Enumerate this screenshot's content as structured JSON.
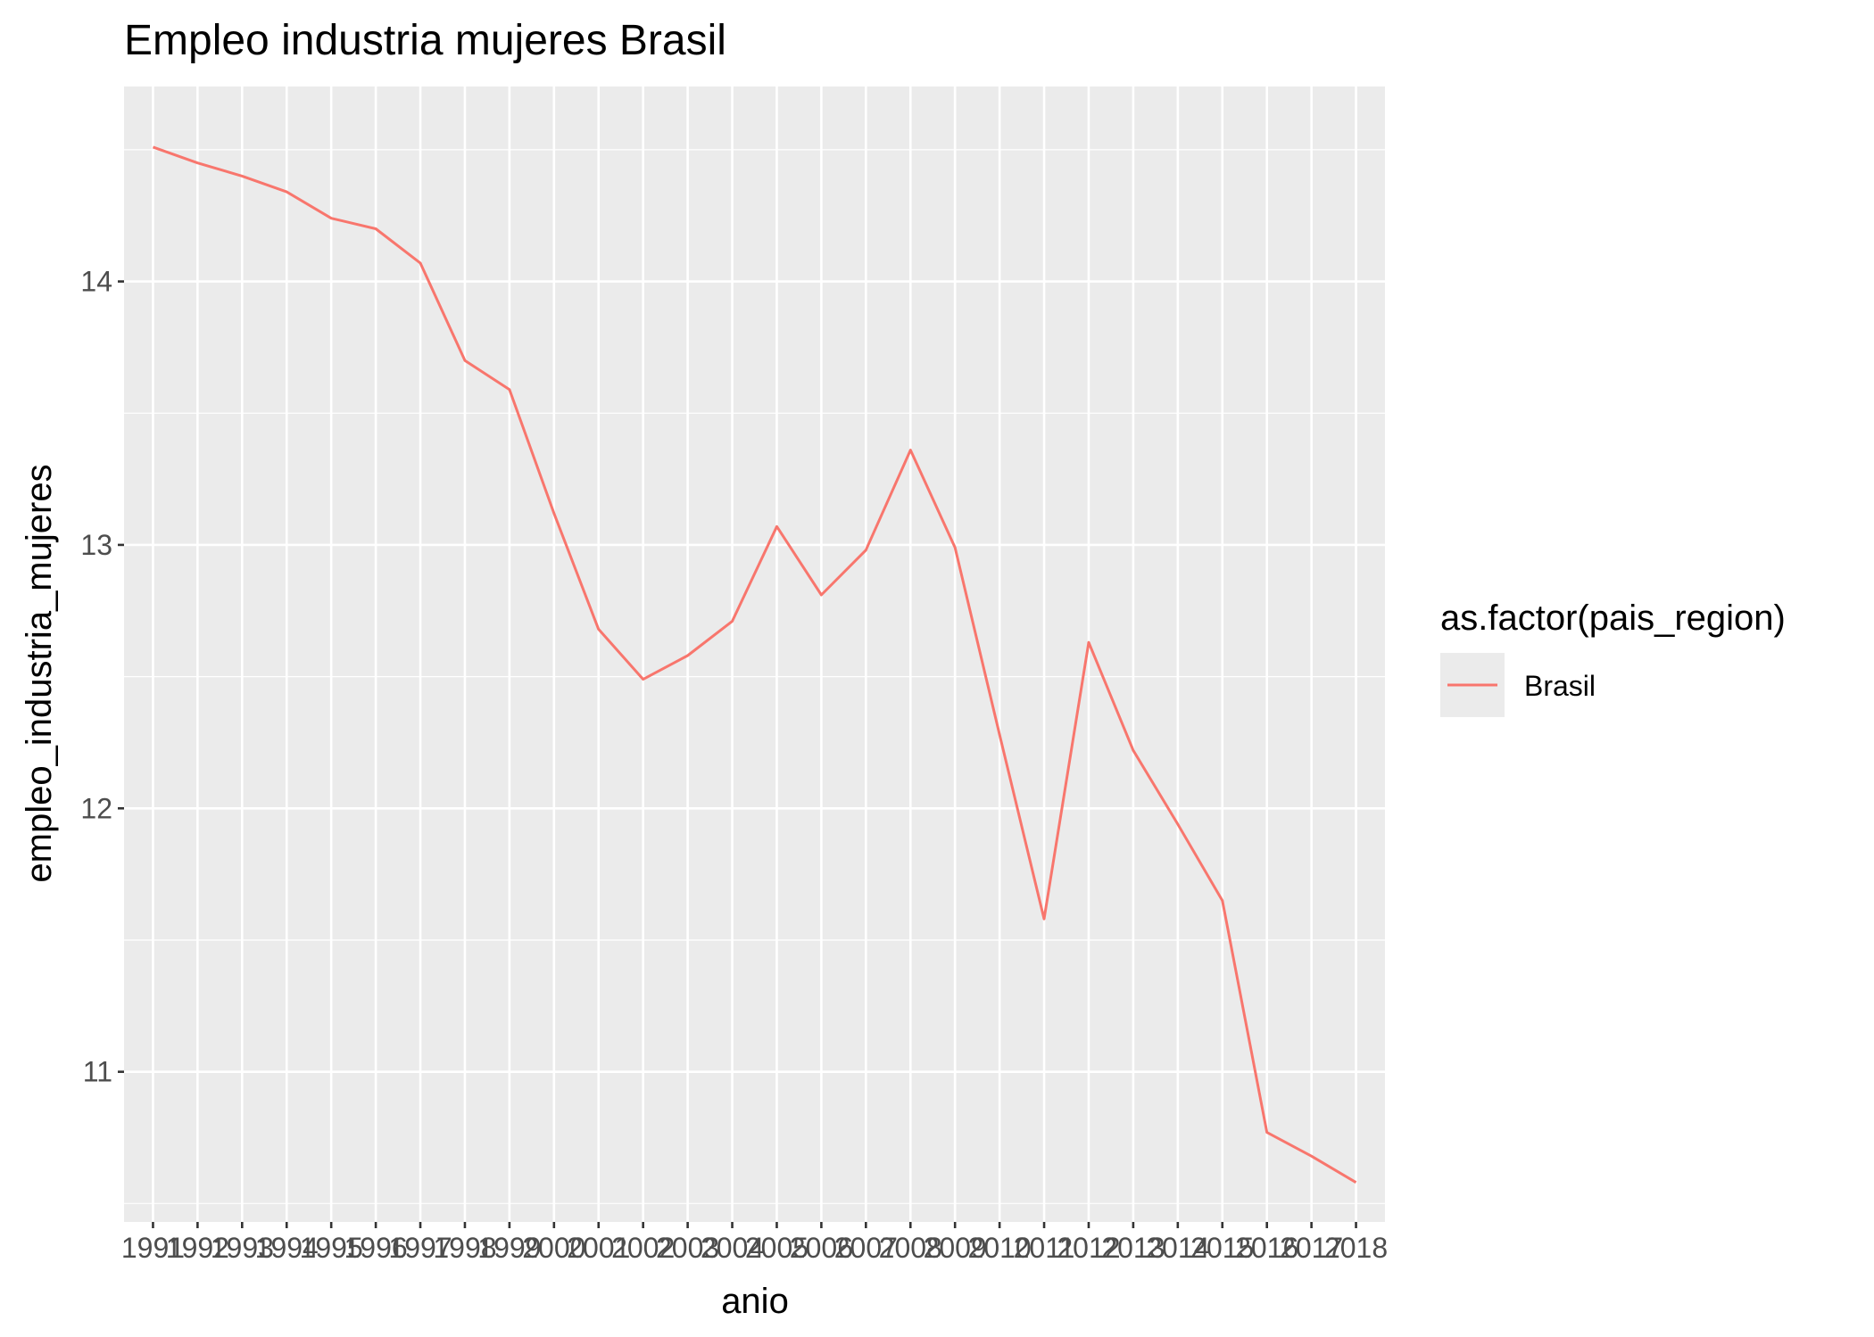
{
  "chart_data": {
    "type": "line",
    "title": "Empleo industria mujeres Brasil",
    "xlabel": "anio",
    "ylabel": "empleo_industria_mujeres",
    "x": [
      1991,
      1992,
      1993,
      1994,
      1995,
      1996,
      1997,
      1998,
      1999,
      2000,
      2001,
      2002,
      2003,
      2004,
      2005,
      2006,
      2007,
      2008,
      2009,
      2010,
      2011,
      2012,
      2013,
      2014,
      2015,
      2016,
      2017,
      2018
    ],
    "x_tick_labels": [
      "1991",
      "1992",
      "1993",
      "1994",
      "1995",
      "1996",
      "1997",
      "1998",
      "1999",
      "2000",
      "2001",
      "2002",
      "2003",
      "2004",
      "2005",
      "2006",
      "2007",
      "2008",
      "2009",
      "2010",
      "2011",
      "2012",
      "2013",
      "2014",
      "2015",
      "2016",
      "2017",
      "2018"
    ],
    "series": [
      {
        "name": "Brasil",
        "color": "#F8766D",
        "values": [
          14.51,
          14.45,
          14.4,
          14.34,
          14.24,
          14.2,
          14.07,
          13.7,
          13.59,
          13.12,
          12.68,
          12.49,
          12.58,
          12.71,
          13.07,
          12.81,
          12.98,
          13.36,
          12.99,
          12.28,
          11.58,
          12.63,
          12.22,
          11.94,
          11.65,
          10.77,
          10.68,
          10.58
        ],
        "label": "Brasil"
      }
    ],
    "xlim": [
      1990.35,
      2018.65
    ],
    "ylim": [
      10.43,
      14.74
    ],
    "y_ticks": [
      11,
      12,
      13,
      14
    ],
    "y_tick_labels": [
      "11",
      "12",
      "13",
      "14"
    ],
    "grid": true,
    "legend": {
      "title": "as.factor(pais_region)",
      "position": "right"
    },
    "colors": {
      "panel_background": "#EBEBEB",
      "grid_line": "#FFFFFF",
      "series": "#F8766D"
    }
  }
}
